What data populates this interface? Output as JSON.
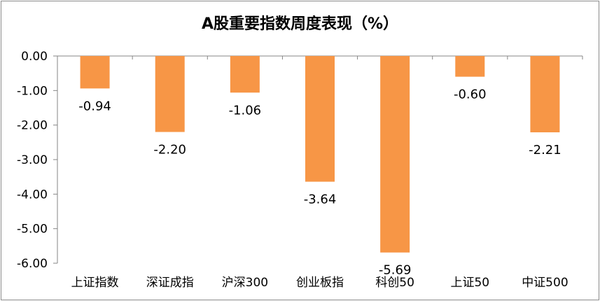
{
  "chart_data": {
    "type": "bar",
    "title": "A股重要指数周度表现（%）",
    "categories": [
      "上证指数",
      "深证成指",
      "沪深300",
      "创业板指",
      "科创50",
      "上证50",
      "中证500"
    ],
    "values": [
      -0.94,
      -2.2,
      -1.06,
      -3.64,
      -5.69,
      -0.6,
      -2.21
    ],
    "data_labels": [
      "-0.94",
      "-2.20",
      "-1.06",
      "-3.64",
      "-5.69",
      "-0.60",
      "-2.21"
    ],
    "ylim": [
      -6.0,
      0.0
    ],
    "yticks": [
      0.0,
      -1.0,
      -2.0,
      -3.0,
      -4.0,
      -5.0,
      -6.0
    ],
    "ytick_labels": [
      "0.00",
      "-1.00",
      "-2.00",
      "-3.00",
      "-4.00",
      "-5.00",
      "-6.00"
    ],
    "xlabel": "",
    "ylabel": "",
    "grid": false,
    "legend": "none",
    "bar_color": "#F79646"
  }
}
